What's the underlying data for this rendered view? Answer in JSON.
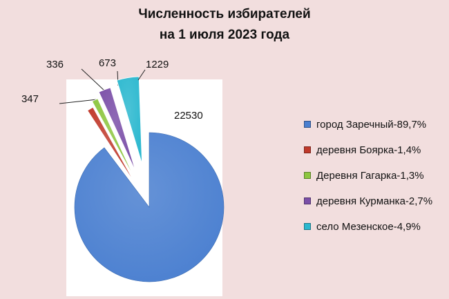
{
  "chart_data": {
    "type": "pie",
    "title_line1": "Численность избирателей",
    "title_line2": "на 1 июля 2023 года",
    "slices": [
      {
        "value": 22530,
        "label": "22530",
        "legend": "город Заречный-89,7%",
        "color": "#4a7fd0"
      },
      {
        "value": 347,
        "label": "347",
        "legend": "деревня Боярка-1,4%",
        "color": "#c0392b"
      },
      {
        "value": 336,
        "label": "336",
        "legend": "Деревня Гагарка-1,3%",
        "color": "#8dc63f"
      },
      {
        "value": 673,
        "label": "673",
        "legend": "деревня Курманка-2,7%",
        "color": "#7b4fa8"
      },
      {
        "value": 1229,
        "label": "1229",
        "legend": "село Мезенское-4,9%",
        "color": "#2bb8cf"
      }
    ],
    "legend_position": "right"
  }
}
